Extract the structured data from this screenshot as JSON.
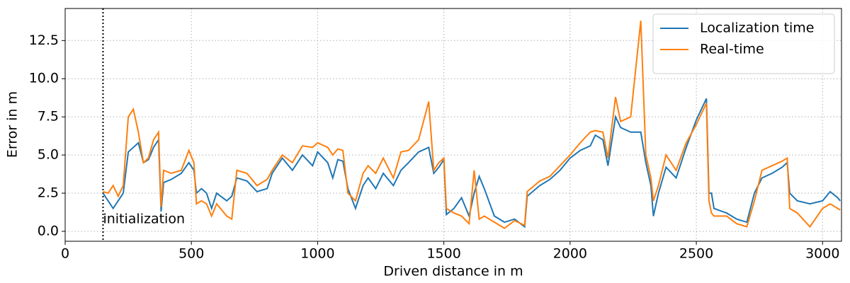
{
  "chart_data": {
    "type": "line",
    "x_label": "Driven distance in m",
    "y_label": "Error in m",
    "x": [
      150,
      170,
      190,
      210,
      230,
      250,
      270,
      290,
      310,
      330,
      350,
      370,
      380,
      390,
      420,
      460,
      490,
      510,
      520,
      540,
      560,
      580,
      600,
      640,
      660,
      680,
      720,
      760,
      800,
      820,
      860,
      900,
      940,
      980,
      1000,
      1040,
      1060,
      1080,
      1100,
      1120,
      1150,
      1180,
      1200,
      1230,
      1260,
      1300,
      1330,
      1360,
      1400,
      1440,
      1460,
      1480,
      1500,
      1510,
      1540,
      1570,
      1600,
      1620,
      1640,
      1660,
      1700,
      1740,
      1780,
      1820,
      1830,
      1880,
      1920,
      1960,
      2000,
      2040,
      2080,
      2100,
      2130,
      2150,
      2180,
      2200,
      2240,
      2280,
      2300,
      2320,
      2330,
      2350,
      2380,
      2420,
      2460,
      2500,
      2540,
      2550,
      2560,
      2570,
      2620,
      2660,
      2700,
      2730,
      2760,
      2800,
      2840,
      2860,
      2870,
      2900,
      2950,
      3000,
      3030,
      3060,
      3070
    ],
    "series": [
      {
        "name": "Localization time",
        "color": "#1f77b4",
        "values": [
          2.5,
          2.0,
          1.5,
          2.0,
          2.5,
          5.2,
          5.5,
          5.8,
          4.5,
          4.7,
          5.5,
          6.0,
          1.3,
          3.2,
          3.4,
          3.8,
          4.5,
          4.0,
          2.5,
          2.8,
          2.5,
          1.5,
          2.5,
          2.0,
          2.3,
          3.5,
          3.3,
          2.6,
          2.8,
          3.8,
          4.8,
          4.0,
          5.0,
          4.3,
          5.2,
          4.5,
          3.5,
          4.7,
          4.6,
          2.8,
          1.5,
          3.0,
          3.5,
          2.8,
          3.8,
          3.0,
          4.0,
          4.5,
          5.2,
          5.5,
          3.8,
          4.2,
          4.7,
          1.1,
          1.5,
          2.2,
          1.0,
          2.5,
          3.6,
          2.8,
          1.0,
          0.6,
          0.8,
          0.3,
          2.3,
          3.0,
          3.4,
          4.0,
          4.8,
          5.3,
          5.6,
          6.3,
          6.0,
          4.3,
          7.5,
          6.8,
          6.5,
          6.5,
          4.5,
          3.0,
          1.0,
          2.5,
          4.2,
          3.5,
          5.5,
          7.3,
          8.7,
          2.5,
          2.5,
          1.5,
          1.2,
          0.8,
          0.6,
          2.5,
          3.5,
          3.8,
          4.2,
          4.5,
          2.5,
          2.0,
          1.8,
          2.0,
          2.6,
          2.2,
          2.0
        ]
      },
      {
        "name": "Real-time",
        "color": "#ff7f0e",
        "values": [
          2.6,
          2.5,
          3.0,
          2.3,
          3.0,
          7.5,
          8.0,
          6.5,
          4.5,
          4.8,
          6.0,
          6.5,
          1.6,
          4.0,
          3.8,
          4.0,
          5.3,
          4.5,
          1.8,
          2.0,
          1.8,
          1.0,
          1.8,
          1.0,
          0.8,
          4.0,
          3.8,
          3.0,
          3.4,
          4.0,
          5.0,
          4.5,
          5.6,
          5.5,
          5.8,
          5.5,
          5.0,
          5.4,
          5.3,
          2.5,
          2.0,
          3.8,
          4.3,
          3.8,
          4.8,
          3.5,
          5.2,
          5.3,
          6.0,
          8.5,
          4.0,
          4.5,
          4.8,
          1.5,
          1.2,
          1.0,
          0.5,
          4.0,
          0.8,
          1.0,
          0.6,
          0.2,
          0.7,
          0.4,
          2.6,
          3.3,
          3.6,
          4.3,
          5.0,
          5.8,
          6.5,
          6.6,
          6.5,
          4.8,
          8.8,
          7.2,
          7.5,
          13.8,
          5.0,
          3.5,
          2.0,
          3.0,
          5.0,
          4.0,
          5.8,
          7.0,
          8.4,
          2.0,
          1.2,
          1.0,
          1.0,
          0.5,
          0.3,
          2.0,
          4.0,
          4.3,
          4.6,
          4.8,
          1.5,
          1.2,
          0.3,
          1.5,
          1.8,
          1.5,
          1.4
        ]
      }
    ],
    "annotation": {
      "text": "initialization",
      "x": 150
    },
    "xlim": [
      0,
      3075
    ],
    "ylim": [
      -0.65,
      14.6
    ],
    "xticks": [
      0,
      500,
      1000,
      1500,
      2000,
      2500,
      3000
    ],
    "yticks": [
      {
        "value": 0,
        "label": "0.0"
      },
      2.5,
      {
        "value": 5,
        "label": "5.0"
      },
      7.5,
      {
        "value": 10,
        "label": "10.0"
      },
      12.5
    ],
    "grid": true,
    "legend": "upper right"
  }
}
